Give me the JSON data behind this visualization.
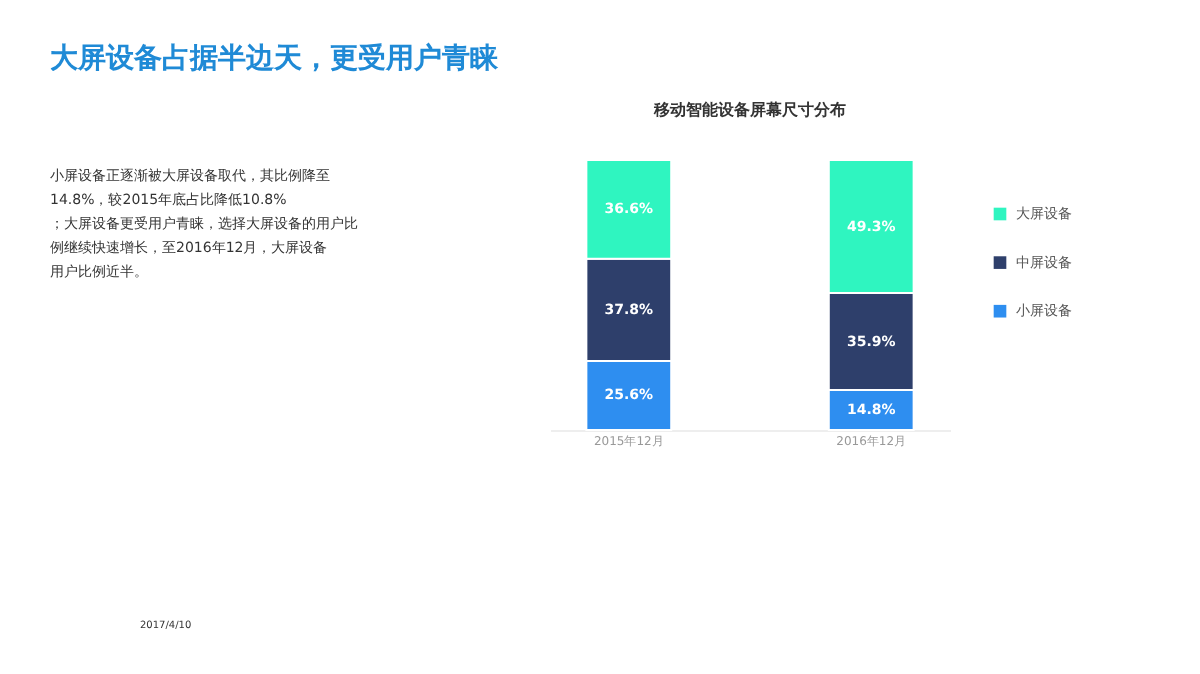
{
  "chart_data": {
    "type": "bar",
    "title": "大屏设备占据半边天，更受用户青睐",
    "subtitle": "移动智能设备屏幕尺寸分布",
    "stacked": true,
    "legend": "right",
    "categories": [
      "2015年12月",
      "2016年12月"
    ],
    "series": [
      {
        "name": "小屏设备",
        "color": "#2e8ef0",
        "values": [
          25.6,
          14.8
        ],
        "value_labels": [
          "25.6%",
          "14.8%"
        ]
      },
      {
        "name": "中屏设备",
        "color": "#2e3f6b",
        "values": [
          37.8,
          35.9
        ],
        "value_labels": [
          "37.8%",
          "35.9%"
        ]
      },
      {
        "name": "大屏设备",
        "color": "#2ff5c0",
        "values": [
          36.6,
          49.3
        ],
        "value_labels": [
          "36.6%",
          "49.3%"
        ]
      }
    ],
    "annotations": [
      "小屏设备正逐渐被大屏设备取代，其比例降至14.8%，较2015年底占比降低10.8%；大屏设备更受用户青睐，选择大屏设备的用户比例继续快速增长，至2016年12月，大屏设备用户比例近半。",
      "2017/4/10"
    ]
  }
}
